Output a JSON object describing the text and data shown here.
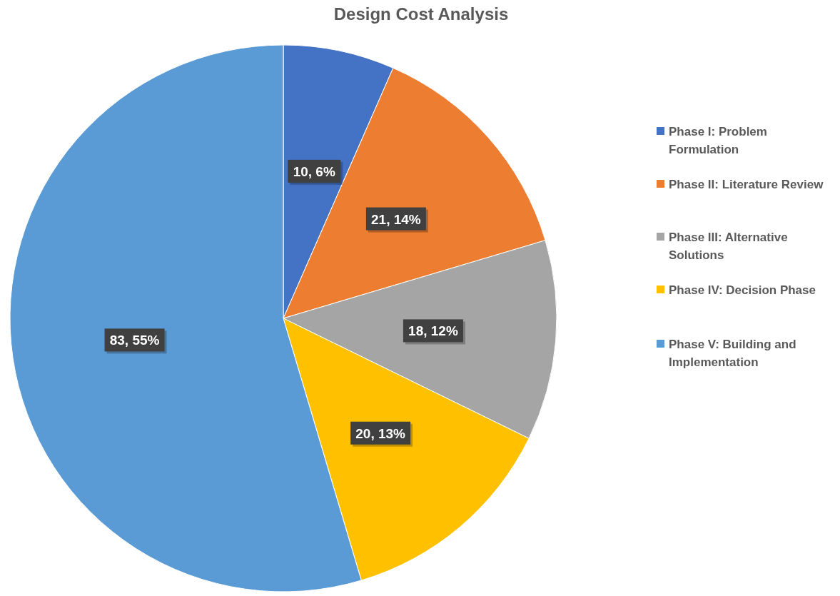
{
  "chart_data": {
    "type": "pie",
    "title": "Design Cost Analysis",
    "categories": [
      "Phase I: Problem Formulation",
      "Phase II: Literature Review",
      "Phase III: Alternative Solutions",
      "Phase IV: Decision Phase",
      "Phase V: Building and Implementation"
    ],
    "values": [
      10,
      21,
      18,
      20,
      83
    ],
    "colors": [
      "#4472c4",
      "#ed7d31",
      "#a5a5a5",
      "#ffc000",
      "#5b9bd5"
    ],
    "value_labels": [
      "10, 6%",
      "21, 14%",
      "18, 12%",
      "20, 13%",
      "83, 55%"
    ],
    "legend": "right"
  }
}
